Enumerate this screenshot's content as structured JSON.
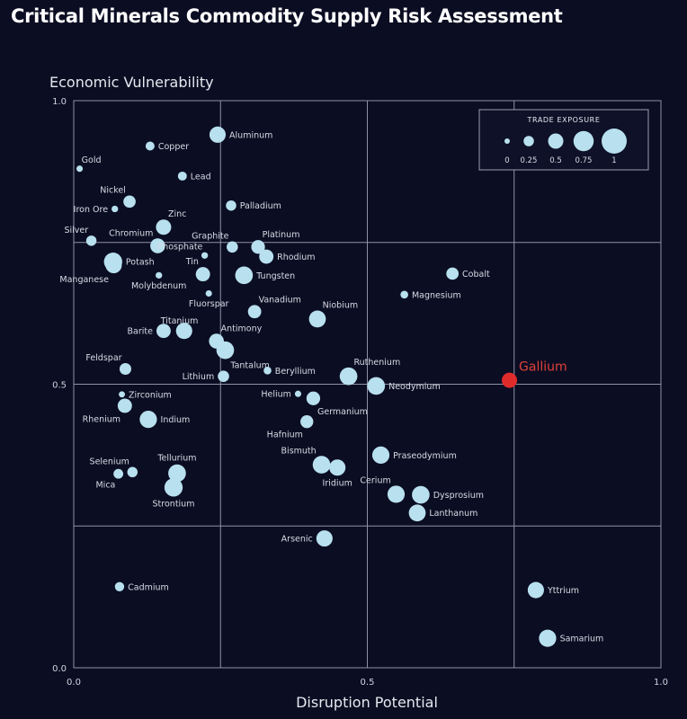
{
  "chart_data": {
    "type": "scatter",
    "title": "Critical Minerals Commodity Supply Risk Assessment",
    "xlabel": "Disruption Potential",
    "ylabel": "Economic Vulnerability",
    "xlim": [
      0,
      1
    ],
    "ylim": [
      0,
      1
    ],
    "x_ticks": [
      "0.0",
      "0.5",
      "1.0"
    ],
    "y_ticks": [
      "0.0",
      "0.5",
      "1.0"
    ],
    "grid": true,
    "legend": {
      "title": "TRADE EXPOSURE",
      "placement": "top-right",
      "values": [
        0,
        0.25,
        0.5,
        0.75,
        1
      ],
      "labels": [
        "0",
        "0.25",
        "0.5",
        "0.75",
        "1"
      ]
    },
    "colors": {
      "point": "#b8e0ef",
      "highlight": "#e02b2b",
      "background": "#0b0d22",
      "grid": "#8d93a8"
    },
    "points": [
      {
        "name": "Aluminum",
        "x": 0.245,
        "y": 0.94,
        "size": 0.55,
        "label_pos": "right"
      },
      {
        "name": "Copper",
        "x": 0.13,
        "y": 0.92,
        "size": 0.18,
        "label_pos": "right"
      },
      {
        "name": "Gold",
        "x": 0.01,
        "y": 0.88,
        "size": 0.05,
        "label_pos": "above-right"
      },
      {
        "name": "Lead",
        "x": 0.185,
        "y": 0.867,
        "size": 0.18,
        "label_pos": "right"
      },
      {
        "name": "Nickel",
        "x": 0.095,
        "y": 0.822,
        "size": 0.35,
        "label_pos": "above-left"
      },
      {
        "name": "Iron Ore",
        "x": 0.07,
        "y": 0.809,
        "size": 0.06,
        "label_pos": "left"
      },
      {
        "name": "Palladium",
        "x": 0.268,
        "y": 0.815,
        "size": 0.25,
        "label_pos": "right"
      },
      {
        "name": "Zinc",
        "x": 0.153,
        "y": 0.777,
        "size": 0.5,
        "label_pos": "above-right"
      },
      {
        "name": "Silver",
        "x": 0.03,
        "y": 0.753,
        "size": 0.25,
        "label_pos": "above-left"
      },
      {
        "name": "Chromium",
        "x": 0.143,
        "y": 0.744,
        "size": 0.48,
        "label_pos": "above-left"
      },
      {
        "name": "Phosphate",
        "x": 0.223,
        "y": 0.727,
        "size": 0.06,
        "label_pos": "above-left"
      },
      {
        "name": "Graphite",
        "x": 0.27,
        "y": 0.742,
        "size": 0.3,
        "label_pos": "above-left"
      },
      {
        "name": "Platinum",
        "x": 0.314,
        "y": 0.742,
        "size": 0.42,
        "label_pos": "above-right"
      },
      {
        "name": "Rhodium",
        "x": 0.328,
        "y": 0.725,
        "size": 0.45,
        "label_pos": "right"
      },
      {
        "name": "Potash",
        "x": 0.067,
        "y": 0.716,
        "size": 0.65,
        "label_pos": "right"
      },
      {
        "name": "Manganese",
        "x": 0.068,
        "y": 0.71,
        "size": 0.55,
        "label_pos": "below-left"
      },
      {
        "name": "Molybdenum",
        "x": 0.145,
        "y": 0.692,
        "size": 0.06,
        "label_pos": "below"
      },
      {
        "name": "Tin",
        "x": 0.22,
        "y": 0.694,
        "size": 0.45,
        "label_pos": "above-left"
      },
      {
        "name": "Tungsten",
        "x": 0.29,
        "y": 0.692,
        "size": 0.62,
        "label_pos": "right"
      },
      {
        "name": "Fluorspar",
        "x": 0.23,
        "y": 0.66,
        "size": 0.05,
        "label_pos": "below"
      },
      {
        "name": "Cobalt",
        "x": 0.645,
        "y": 0.695,
        "size": 0.35,
        "label_pos": "right"
      },
      {
        "name": "Magnesium",
        "x": 0.563,
        "y": 0.658,
        "size": 0.12,
        "label_pos": "right"
      },
      {
        "name": "Vanadium",
        "x": 0.308,
        "y": 0.628,
        "size": 0.4,
        "label_pos": "above-right"
      },
      {
        "name": "Niobium",
        "x": 0.415,
        "y": 0.615,
        "size": 0.58,
        "label_pos": "above-right"
      },
      {
        "name": "Titanium",
        "x": 0.18,
        "y": 0.595,
        "size": 0.05,
        "label_pos": "above"
      },
      {
        "name": "Barite",
        "x": 0.153,
        "y": 0.594,
        "size": 0.45,
        "label_pos": "left"
      },
      {
        "name": "",
        "x": 0.188,
        "y": 0.594,
        "size": 0.55,
        "label_pos": "none"
      },
      {
        "name": "Antimony",
        "x": 0.243,
        "y": 0.576,
        "size": 0.48,
        "label_pos": "above-right"
      },
      {
        "name": "Tantalum",
        "x": 0.258,
        "y": 0.56,
        "size": 0.62,
        "label_pos": "below-right"
      },
      {
        "name": "Feldspar",
        "x": 0.088,
        "y": 0.527,
        "size": 0.32,
        "label_pos": "above-left"
      },
      {
        "name": "Lithium",
        "x": 0.255,
        "y": 0.514,
        "size": 0.3,
        "label_pos": "left"
      },
      {
        "name": "Beryllium",
        "x": 0.33,
        "y": 0.524,
        "size": 0.12,
        "label_pos": "right"
      },
      {
        "name": "Ruthenium",
        "x": 0.468,
        "y": 0.514,
        "size": 0.62,
        "label_pos": "above-right"
      },
      {
        "name": "Neodymium",
        "x": 0.515,
        "y": 0.497,
        "size": 0.62,
        "label_pos": "right"
      },
      {
        "name": "Gallium",
        "x": 0.742,
        "y": 0.507,
        "size": 0.5,
        "label_pos": "above-right",
        "highlight": true
      },
      {
        "name": "Zirconium",
        "x": 0.082,
        "y": 0.482,
        "size": 0.04,
        "label_pos": "right"
      },
      {
        "name": "Helium",
        "x": 0.382,
        "y": 0.483,
        "size": 0.05,
        "label_pos": "left"
      },
      {
        "name": "Germanium",
        "x": 0.408,
        "y": 0.475,
        "size": 0.42,
        "label_pos": "below-right"
      },
      {
        "name": "Rhenium",
        "x": 0.087,
        "y": 0.462,
        "size": 0.45,
        "label_pos": "below-left"
      },
      {
        "name": "Indium",
        "x": 0.127,
        "y": 0.438,
        "size": 0.6,
        "label_pos": "right"
      },
      {
        "name": "Hafnium",
        "x": 0.397,
        "y": 0.434,
        "size": 0.38,
        "label_pos": "below-left"
      },
      {
        "name": "Praseodymium",
        "x": 0.523,
        "y": 0.375,
        "size": 0.6,
        "label_pos": "right"
      },
      {
        "name": "Bismuth",
        "x": 0.422,
        "y": 0.358,
        "size": 0.62,
        "label_pos": "above-left"
      },
      {
        "name": "Iridium",
        "x": 0.449,
        "y": 0.353,
        "size": 0.55,
        "label_pos": "below"
      },
      {
        "name": "Tellurium",
        "x": 0.176,
        "y": 0.343,
        "size": 0.62,
        "label_pos": "above"
      },
      {
        "name": "Selenium",
        "x": 0.1,
        "y": 0.345,
        "size": 0.25,
        "label_pos": "above-left"
      },
      {
        "name": "Mica",
        "x": 0.076,
        "y": 0.342,
        "size": 0.22,
        "label_pos": "below-left"
      },
      {
        "name": "Strontium",
        "x": 0.17,
        "y": 0.318,
        "size": 0.65,
        "label_pos": "below"
      },
      {
        "name": "Cerium",
        "x": 0.549,
        "y": 0.306,
        "size": 0.6,
        "label_pos": "above-left"
      },
      {
        "name": "Dysprosium",
        "x": 0.591,
        "y": 0.305,
        "size": 0.62,
        "label_pos": "right"
      },
      {
        "name": "Lanthanum",
        "x": 0.585,
        "y": 0.273,
        "size": 0.58,
        "label_pos": "right"
      },
      {
        "name": "Arsenic",
        "x": 0.427,
        "y": 0.228,
        "size": 0.55,
        "label_pos": "left"
      },
      {
        "name": "Cadmium",
        "x": 0.078,
        "y": 0.143,
        "size": 0.2,
        "label_pos": "right"
      },
      {
        "name": "Yttrium",
        "x": 0.787,
        "y": 0.137,
        "size": 0.55,
        "label_pos": "right"
      },
      {
        "name": "Samarium",
        "x": 0.807,
        "y": 0.052,
        "size": 0.6,
        "label_pos": "right"
      }
    ]
  }
}
